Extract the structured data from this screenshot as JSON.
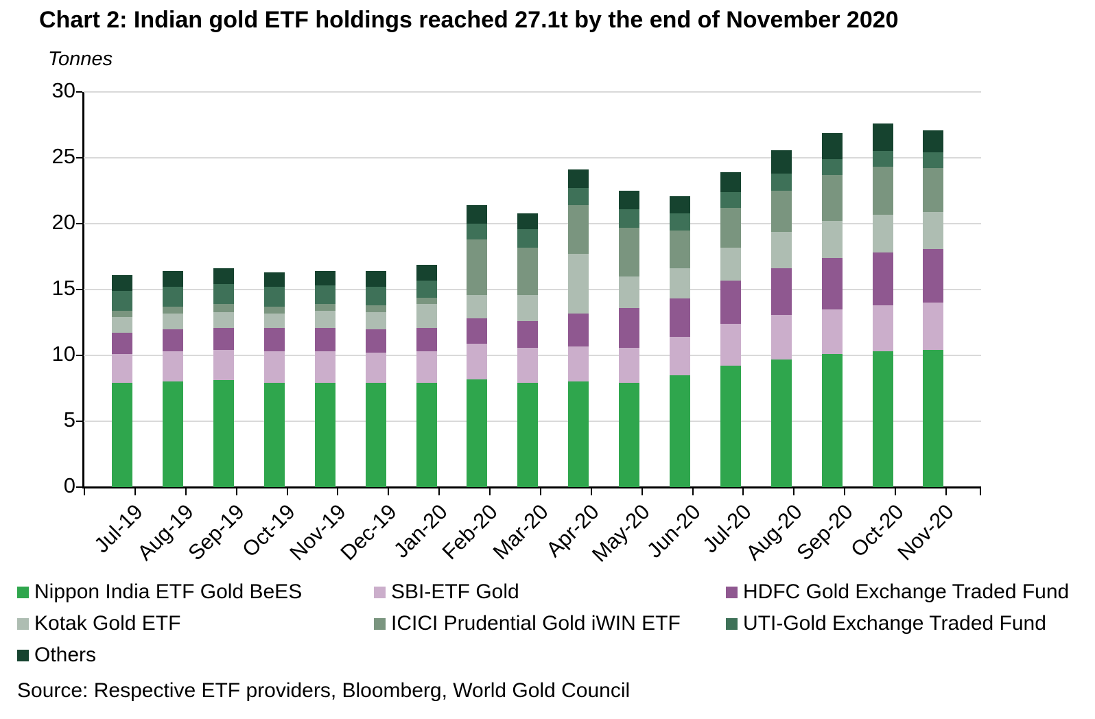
{
  "title": "Chart 2: Indian gold ETF holdings reached 27.1t by the end of November 2020",
  "y_axis_unit": "Tonnes",
  "source": "Source: Respective ETF providers, Bloomberg, World Gold Council",
  "colors": {
    "grid": "#d9d9d9",
    "axis": "#000000"
  },
  "chart_data": {
    "type": "bar",
    "stacked": true,
    "grid": "horizontal",
    "legend_position": "bottom",
    "ylabel": "Tonnes",
    "ylim": [
      0,
      30
    ],
    "yticks": [
      0,
      5,
      10,
      15,
      20,
      25,
      30
    ],
    "categories": [
      "Jul-19",
      "Aug-19",
      "Sep-19",
      "Oct-19",
      "Nov-19",
      "Dec-19",
      "Jan-20",
      "Feb-20",
      "Mar-20",
      "Apr-20",
      "May-20",
      "Jun-20",
      "Jul-20",
      "Aug-20",
      "Sep-20",
      "Oct-20",
      "Nov-20"
    ],
    "totals": [
      16.1,
      16.4,
      16.6,
      16.3,
      16.4,
      16.4,
      16.9,
      21.4,
      20.8,
      24.1,
      22.5,
      22.1,
      23.9,
      25.6,
      26.9,
      27.6,
      27.1
    ],
    "series": [
      {
        "name": "Nippon India ETF Gold BeES",
        "color": "#2fa64d",
        "values": [
          7.9,
          8.0,
          8.1,
          7.9,
          7.9,
          7.9,
          7.9,
          8.2,
          7.9,
          8.0,
          7.9,
          8.5,
          9.2,
          9.7,
          10.1,
          10.3,
          10.4
        ]
      },
      {
        "name": "SBI-ETF Gold",
        "color": "#cbaecb",
        "values": [
          2.2,
          2.3,
          2.3,
          2.4,
          2.4,
          2.3,
          2.4,
          2.7,
          2.7,
          2.7,
          2.7,
          2.9,
          3.2,
          3.4,
          3.4,
          3.5,
          3.6
        ]
      },
      {
        "name": "HDFC Gold Exchange Traded Fund",
        "color": "#8f5890",
        "values": [
          1.6,
          1.7,
          1.7,
          1.8,
          1.8,
          1.8,
          1.8,
          1.9,
          2.0,
          2.5,
          3.0,
          2.9,
          3.3,
          3.5,
          3.9,
          4.0,
          4.1
        ]
      },
      {
        "name": "Kotak Gold ETF",
        "color": "#aebdb2",
        "values": [
          1.2,
          1.2,
          1.2,
          1.1,
          1.3,
          1.3,
          1.8,
          1.8,
          2.0,
          4.5,
          2.4,
          2.3,
          2.5,
          2.8,
          2.8,
          2.9,
          2.8
        ]
      },
      {
        "name": "ICICI Prudential Gold iWIN ETF",
        "color": "#7a957f",
        "values": [
          0.5,
          0.5,
          0.6,
          0.5,
          0.5,
          0.5,
          0.5,
          4.2,
          3.6,
          3.7,
          3.7,
          2.9,
          3.0,
          3.1,
          3.5,
          3.6,
          3.3
        ]
      },
      {
        "name": "UTI-Gold Exchange Traded Fund",
        "color": "#3e7158",
        "values": [
          1.5,
          1.5,
          1.5,
          1.5,
          1.4,
          1.4,
          1.3,
          1.2,
          1.4,
          1.3,
          1.4,
          1.3,
          1.2,
          1.3,
          1.2,
          1.2,
          1.2
        ]
      },
      {
        "name": "Others",
        "color": "#16432f",
        "values": [
          1.2,
          1.2,
          1.2,
          1.1,
          1.1,
          1.2,
          1.2,
          1.4,
          1.2,
          1.4,
          1.4,
          1.3,
          1.5,
          1.8,
          2.0,
          2.1,
          1.7
        ]
      }
    ]
  }
}
